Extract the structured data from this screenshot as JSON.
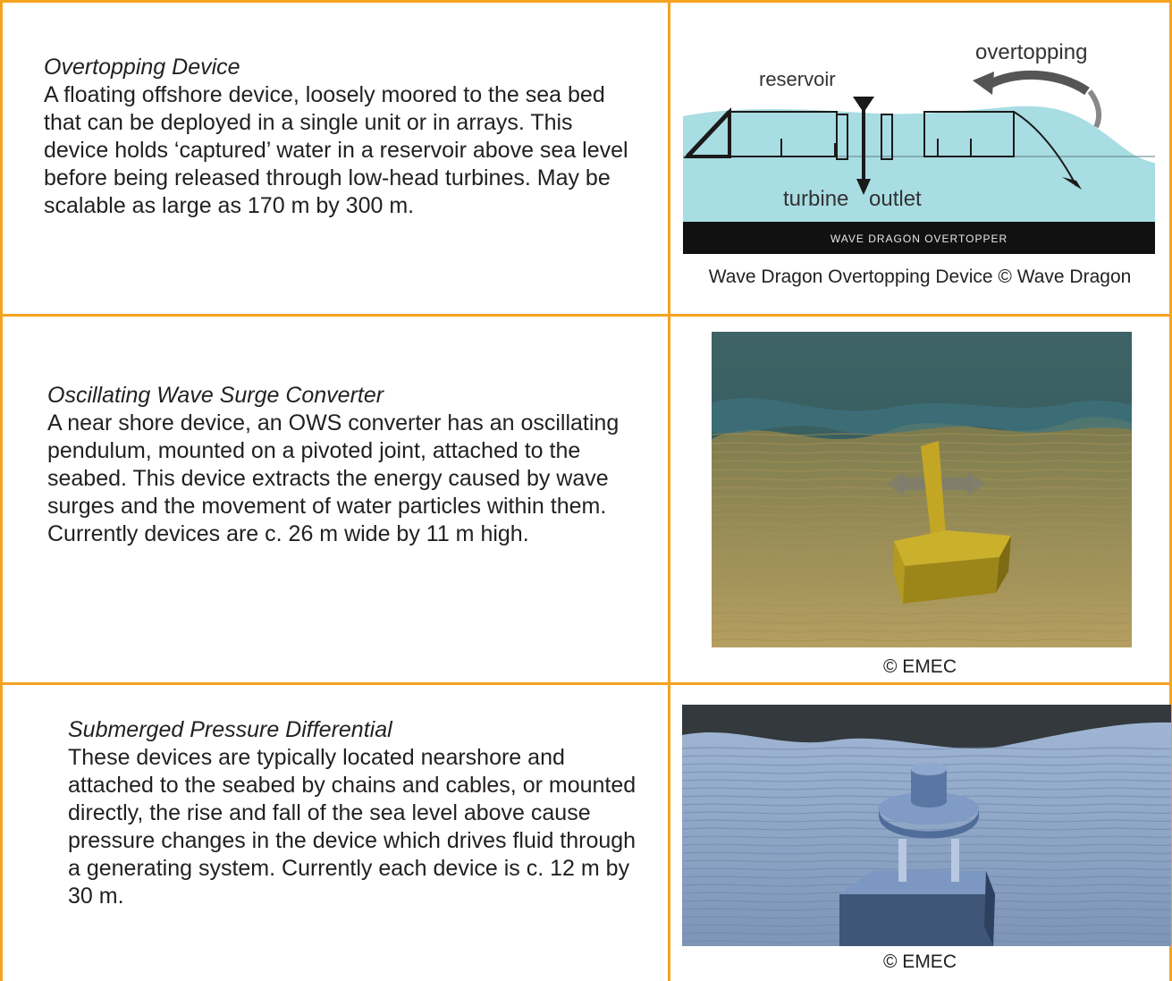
{
  "rows": [
    {
      "title": "Overtopping Device",
      "body": "A floating offshore device, loosely moored to the sea bed that can be deployed in a single unit or in arrays. This device holds ‘captured’ water in a reservoir above sea level before being released through low-head turbines.  May be scalable as large as 170 m by 300 m.",
      "figure_labels": {
        "overtopping": "overtopping",
        "reservoir": "reservoir",
        "turbine": "turbine",
        "outlet": "outlet",
        "banner": "WAVE DRAGON OVERTOPPER"
      },
      "caption": "Wave Dragon Overtopping Device © Wave Dragon"
    },
    {
      "title": "Oscillating Wave Surge Converter",
      "body": "A near shore device, an OWS converter has an oscillating pendulum, mounted on a pivoted joint, attached to the seabed. This device extracts the energy caused by wave surges and the movement of water particles within them. Currently devices are c. 26 m wide by 11 m high.",
      "caption": "© EMEC"
    },
    {
      "title": "Submerged Pressure Differential",
      "body": "These devices are typically located nearshore and attached to the seabed by chains and cables, or mounted directly, the rise and fall of the sea level above cause pressure changes in the device which drives fluid through a generating system. Currently each device is c. 12 m by 30 m.",
      "caption": "© EMEC"
    }
  ],
  "colors": {
    "border": "#f4a321",
    "text": "#231f20",
    "water_light": "#a8dde3",
    "banner": "#111111"
  }
}
